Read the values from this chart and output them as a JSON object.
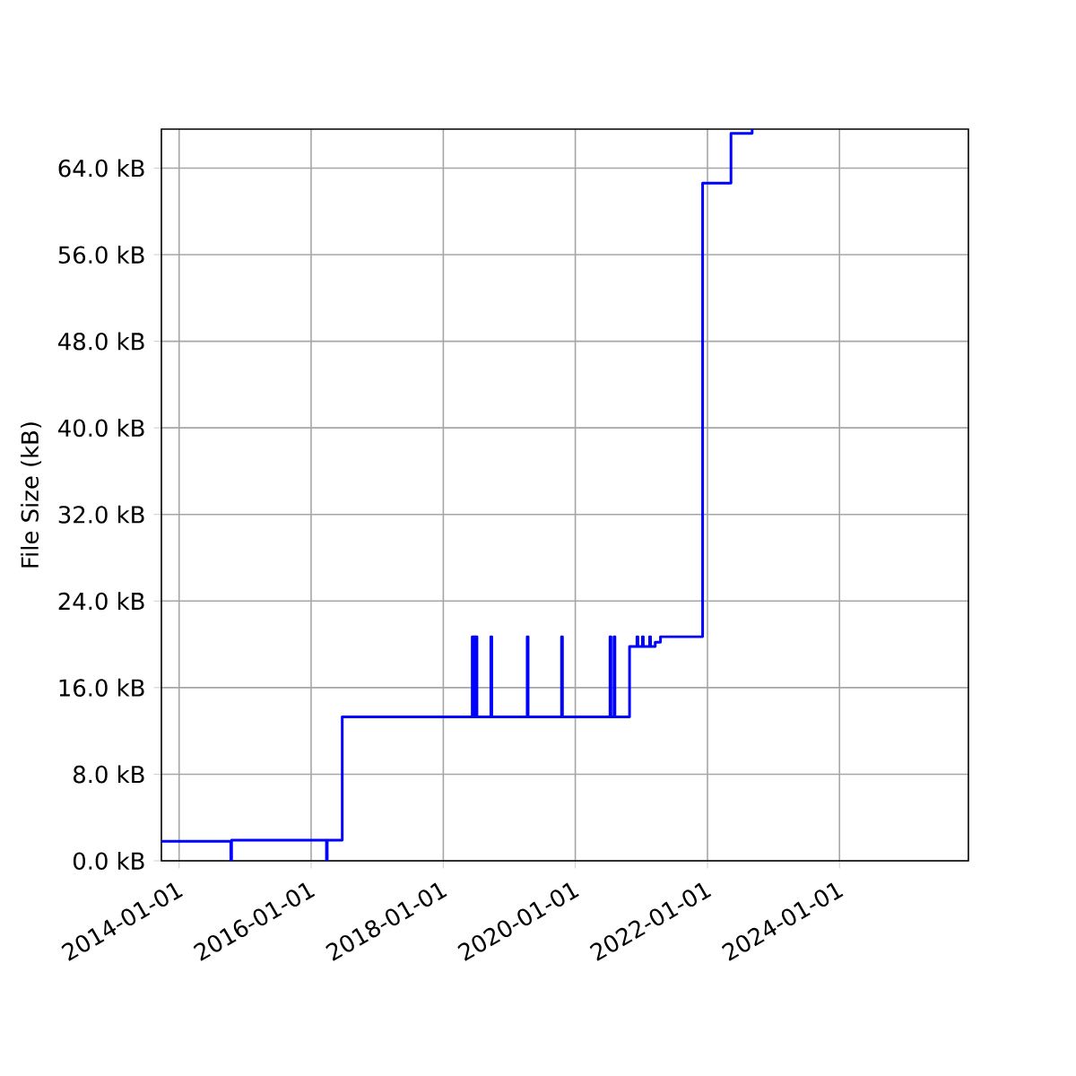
{
  "chart_data": {
    "type": "step",
    "ylabel": "File Size (kB)",
    "x": [
      "2013-09-25",
      "2014-10-14",
      "2014-10-18",
      "2016-03-26",
      "2016-03-30",
      "2016-06-21",
      "2018-06-10",
      "2018-06-16",
      "2018-06-20",
      "2018-06-26",
      "2018-06-30",
      "2018-07-06",
      "2018-09-21",
      "2018-09-26",
      "2019-04-10",
      "2019-04-15",
      "2019-10-17",
      "2019-10-22",
      "2020-07-11",
      "2020-07-16",
      "2020-08-02",
      "2020-08-07",
      "2020-10-27",
      "2020-12-07",
      "2020-12-12",
      "2021-01-06",
      "2021-01-11",
      "2021-02-15",
      "2021-02-20",
      "2021-03-18",
      "2021-04-16",
      "2021-12-05",
      "2022-05-11",
      "2022-09-05",
      "2022-09-12"
    ],
    "values": [
      1.8,
      0,
      1.9,
      0,
      1.9,
      13.3,
      20.7,
      13.3,
      20.7,
      13.3,
      20.7,
      13.3,
      20.7,
      13.3,
      20.7,
      13.3,
      20.7,
      13.3,
      20.7,
      13.3,
      20.7,
      13.3,
      19.8,
      20.7,
      19.8,
      20.7,
      19.8,
      20.7,
      19.8,
      20.2,
      20.7,
      62.6,
      67.2,
      67.5,
      67.5
    ],
    "color": "#0000ff",
    "xlim": [
      "2013-09-25",
      "2025-12-14"
    ],
    "xticks": [
      {
        "value": "2014-01-01",
        "label": "2014-01-01"
      },
      {
        "value": "2016-01-01",
        "label": "2016-01-01"
      },
      {
        "value": "2018-01-01",
        "label": "2018-01-01"
      },
      {
        "value": "2020-01-01",
        "label": "2020-01-01"
      },
      {
        "value": "2022-01-01",
        "label": "2022-01-01"
      },
      {
        "value": "2024-01-01",
        "label": "2024-01-01"
      }
    ],
    "ylim": [
      0,
      67.6
    ],
    "yticks": [
      {
        "value": 0,
        "label": "0.0 kB"
      },
      {
        "value": 8,
        "label": "8.0 kB"
      },
      {
        "value": 16,
        "label": "16.0 kB"
      },
      {
        "value": 24,
        "label": "24.0 kB"
      },
      {
        "value": 32,
        "label": "32.0 kB"
      },
      {
        "value": 40,
        "label": "40.0 kB"
      },
      {
        "value": 48,
        "label": "48.0 kB"
      },
      {
        "value": 56,
        "label": "56.0 kB"
      },
      {
        "value": 64,
        "label": "64.0 kB"
      }
    ],
    "grid": true
  }
}
